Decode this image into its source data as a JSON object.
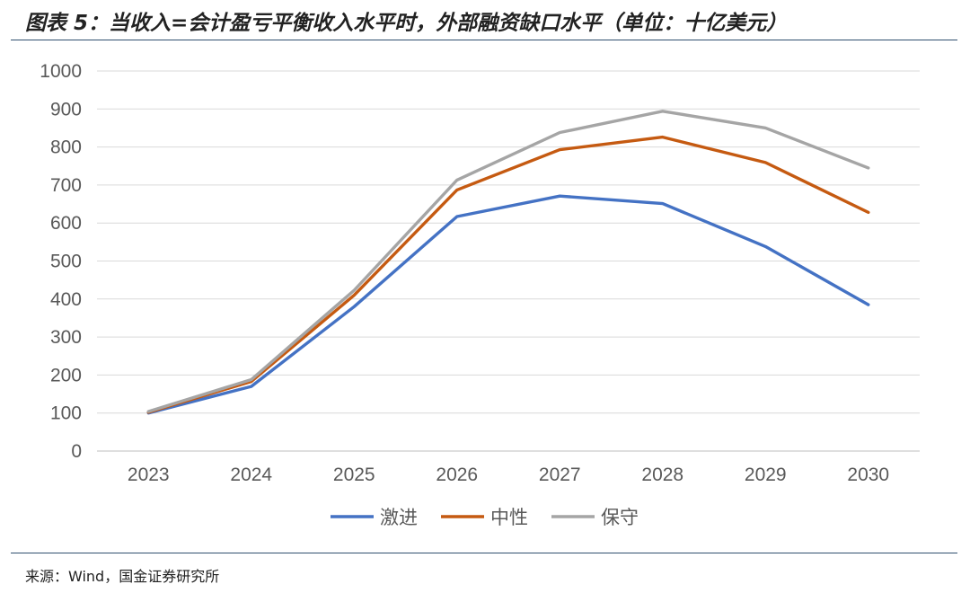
{
  "header": {
    "title": "图表 5：当收入=会计盈亏平衡收入水平时，外部融资缺口水平（单位：十亿美元）"
  },
  "footer": {
    "source": "来源：Wind，国金证券研究所"
  },
  "chart_data": {
    "type": "line",
    "title": "图表 5：当收入=会计盈亏平衡收入水平时，外部融资缺口水平（单位：十亿美元）",
    "xlabel": "",
    "ylabel": "",
    "x": [
      "2023",
      "2024",
      "2025",
      "2026",
      "2027",
      "2028",
      "2029",
      "2030"
    ],
    "ylim": [
      0,
      1000
    ],
    "yticks": [
      0,
      100,
      200,
      300,
      400,
      500,
      600,
      700,
      800,
      900,
      1000
    ],
    "grid": "horizontal",
    "legend": "bottom",
    "series": [
      {
        "name": "激进",
        "color": "#4472c4",
        "values": [
          100,
          170,
          380,
          617,
          671,
          651,
          538,
          385
        ]
      },
      {
        "name": "中性",
        "color": "#c55a11",
        "values": [
          102,
          183,
          410,
          687,
          793,
          826,
          759,
          628
        ]
      },
      {
        "name": "保守",
        "color": "#a5a5a5",
        "values": [
          104,
          188,
          423,
          713,
          838,
          894,
          850,
          745
        ]
      }
    ]
  }
}
